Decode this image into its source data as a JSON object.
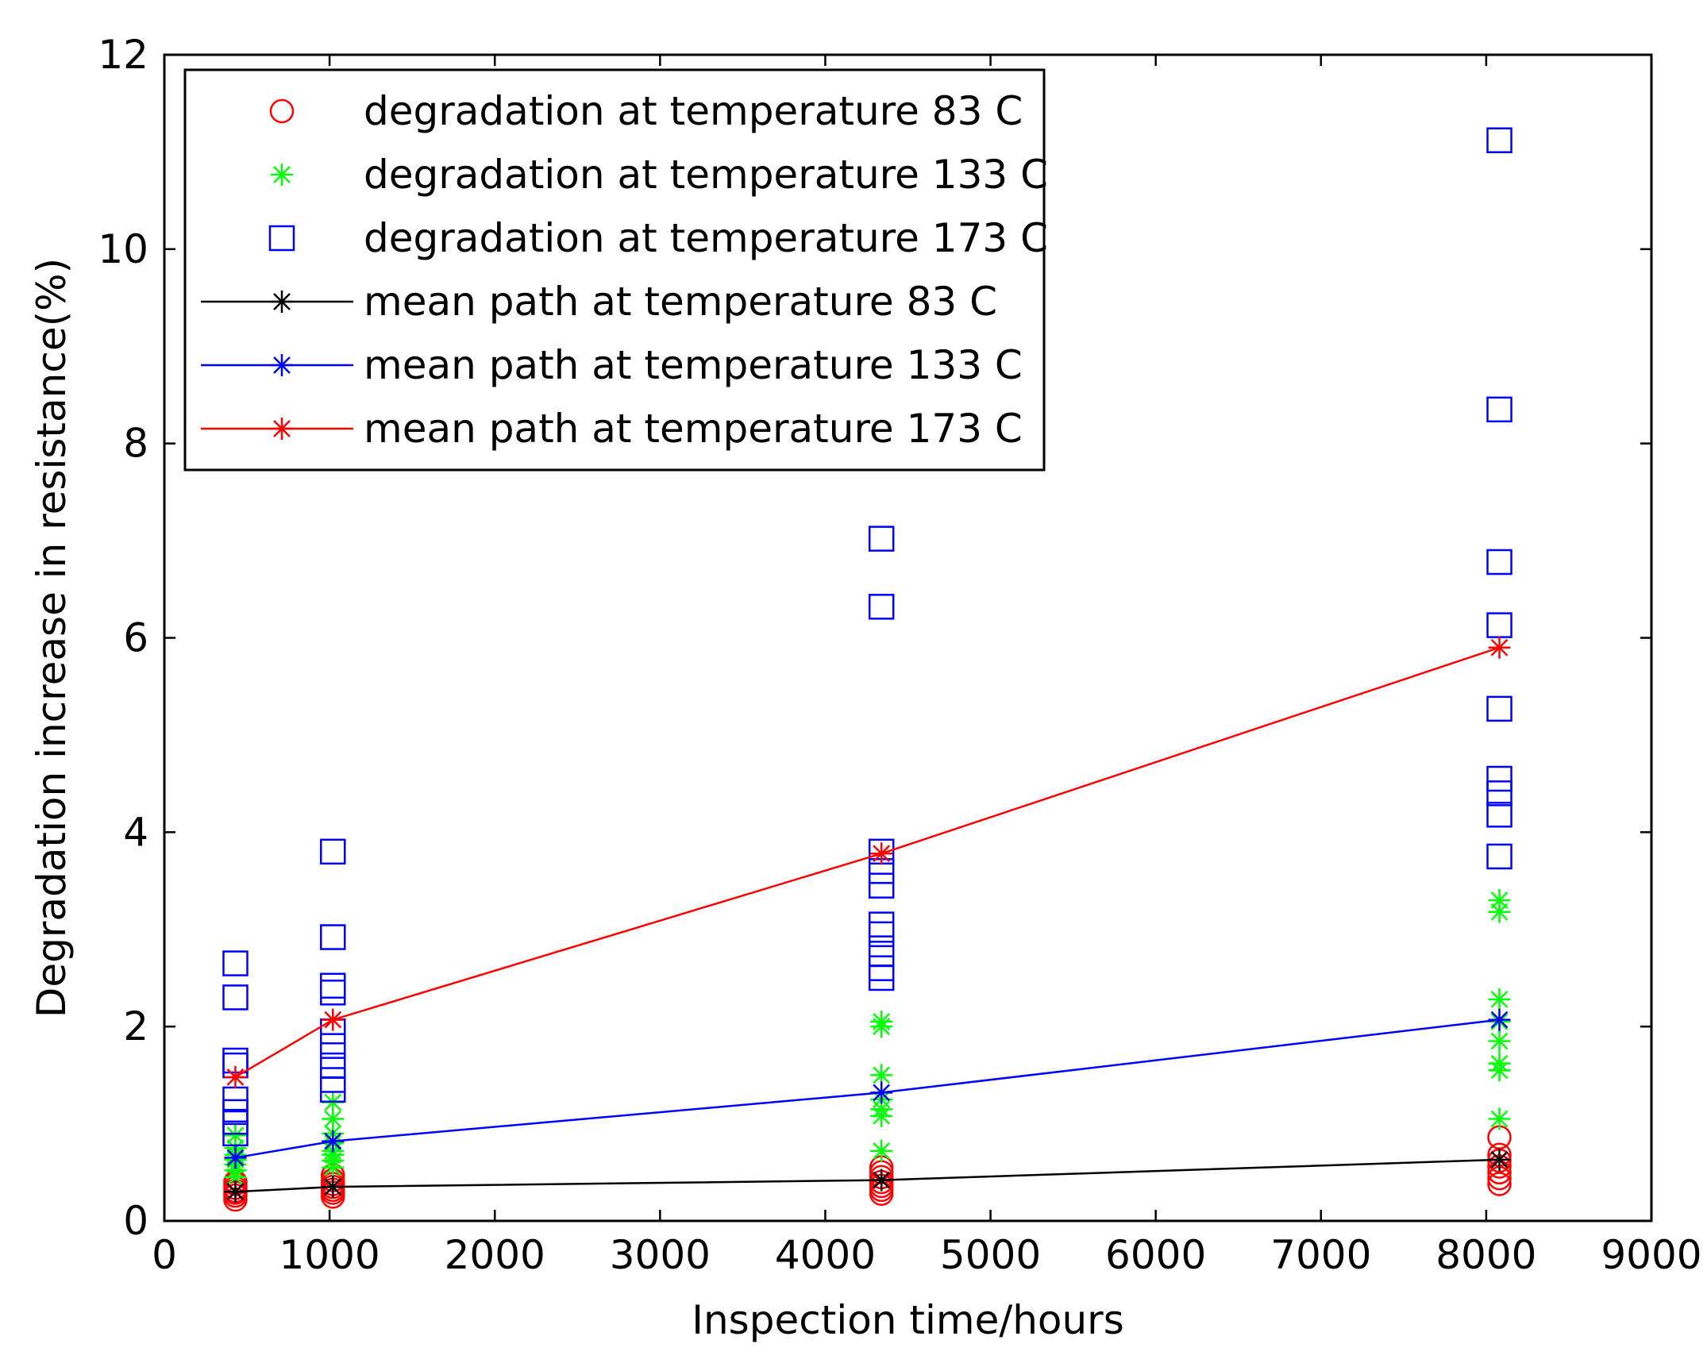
{
  "chart_data": {
    "type": "scatter",
    "title": "",
    "xlabel": "Inspection time/hours",
    "ylabel": "Degradation increase in resistance(%)",
    "xlim": [
      0,
      9000
    ],
    "ylim": [
      0,
      12
    ],
    "xticks": [
      0,
      1000,
      2000,
      3000,
      4000,
      5000,
      6000,
      7000,
      8000,
      9000
    ],
    "yticks": [
      0,
      2,
      4,
      6,
      8,
      10,
      12
    ],
    "grid": false,
    "legend_position": "top-left",
    "series": [
      {
        "name": "degradation at temperature 83 C",
        "kind": "marker",
        "marker": "circle",
        "color": "#ff0000",
        "points": [
          [
            430,
            0.22
          ],
          [
            430,
            0.26
          ],
          [
            430,
            0.29
          ],
          [
            430,
            0.31
          ],
          [
            430,
            0.34
          ],
          [
            430,
            0.38
          ],
          [
            430,
            0.4
          ],
          [
            1020,
            0.25
          ],
          [
            1020,
            0.29
          ],
          [
            1020,
            0.32
          ],
          [
            1020,
            0.35
          ],
          [
            1020,
            0.38
          ],
          [
            1020,
            0.42
          ],
          [
            1020,
            0.47
          ],
          [
            4340,
            0.28
          ],
          [
            4340,
            0.32
          ],
          [
            4340,
            0.36
          ],
          [
            4340,
            0.4
          ],
          [
            4340,
            0.45
          ],
          [
            4340,
            0.5
          ],
          [
            4340,
            0.55
          ],
          [
            8080,
            0.38
          ],
          [
            8080,
            0.44
          ],
          [
            8080,
            0.5
          ],
          [
            8080,
            0.56
          ],
          [
            8080,
            0.62
          ],
          [
            8080,
            0.68
          ],
          [
            8080,
            0.86
          ]
        ]
      },
      {
        "name": "degradation at temperature 133 C",
        "kind": "marker",
        "marker": "asterisk",
        "color": "#00ff00",
        "points": [
          [
            430,
            0.45
          ],
          [
            430,
            0.52
          ],
          [
            430,
            0.58
          ],
          [
            430,
            0.63
          ],
          [
            430,
            0.68
          ],
          [
            430,
            0.75
          ],
          [
            430,
            0.88
          ],
          [
            1020,
            0.55
          ],
          [
            1020,
            0.62
          ],
          [
            1020,
            0.68
          ],
          [
            1020,
            0.72
          ],
          [
            1020,
            0.8
          ],
          [
            1020,
            0.9
          ],
          [
            1020,
            1.05
          ],
          [
            1020,
            1.22
          ],
          [
            4340,
            0.72
          ],
          [
            4340,
            1.08
          ],
          [
            4340,
            1.15
          ],
          [
            4340,
            1.25
          ],
          [
            4340,
            1.5
          ],
          [
            4340,
            2.0
          ],
          [
            4340,
            2.05
          ],
          [
            8080,
            1.05
          ],
          [
            8080,
            1.55
          ],
          [
            8080,
            1.62
          ],
          [
            8080,
            1.85
          ],
          [
            8080,
            2.05
          ],
          [
            8080,
            2.28
          ],
          [
            8080,
            3.18
          ],
          [
            8080,
            3.3
          ]
        ]
      },
      {
        "name": "degradation at temperature 173 C",
        "kind": "marker",
        "marker": "square",
        "color": "#0000ff",
        "points": [
          [
            430,
            0.9
          ],
          [
            430,
            1.02
          ],
          [
            430,
            1.12
          ],
          [
            430,
            1.25
          ],
          [
            430,
            1.6
          ],
          [
            430,
            1.65
          ],
          [
            430,
            2.3
          ],
          [
            430,
            2.65
          ],
          [
            1020,
            1.35
          ],
          [
            1020,
            1.45
          ],
          [
            1020,
            1.6
          ],
          [
            1020,
            1.8
          ],
          [
            1020,
            1.95
          ],
          [
            1020,
            2.35
          ],
          [
            1020,
            2.42
          ],
          [
            1020,
            2.92
          ],
          [
            1020,
            3.8
          ],
          [
            4340,
            2.5
          ],
          [
            4340,
            2.6
          ],
          [
            4340,
            2.75
          ],
          [
            4340,
            2.95
          ],
          [
            4340,
            3.05
          ],
          [
            4340,
            3.45
          ],
          [
            4340,
            3.6
          ],
          [
            4340,
            3.8
          ],
          [
            4340,
            6.32
          ],
          [
            4340,
            7.02
          ],
          [
            8080,
            3.75
          ],
          [
            8080,
            4.18
          ],
          [
            8080,
            4.4
          ],
          [
            8080,
            4.55
          ],
          [
            8080,
            5.27
          ],
          [
            8080,
            6.13
          ],
          [
            8080,
            6.78
          ],
          [
            8080,
            8.35
          ],
          [
            8080,
            11.12
          ]
        ]
      },
      {
        "name": "mean path at temperature 83 C",
        "kind": "line",
        "marker": "asterisk",
        "color": "#000000",
        "points": [
          [
            430,
            0.3
          ],
          [
            1020,
            0.35
          ],
          [
            4340,
            0.42
          ],
          [
            8080,
            0.63
          ]
        ]
      },
      {
        "name": "mean path at temperature 133 C",
        "kind": "line",
        "marker": "asterisk",
        "color": "#0000ff",
        "points": [
          [
            430,
            0.65
          ],
          [
            1020,
            0.82
          ],
          [
            4340,
            1.32
          ],
          [
            8080,
            2.07
          ]
        ]
      },
      {
        "name": "mean path at temperature 173 C",
        "kind": "line",
        "marker": "asterisk",
        "color": "#ff0000",
        "points": [
          [
            430,
            1.48
          ],
          [
            1020,
            2.07
          ],
          [
            4340,
            3.78
          ],
          [
            8080,
            5.9
          ]
        ]
      }
    ]
  }
}
